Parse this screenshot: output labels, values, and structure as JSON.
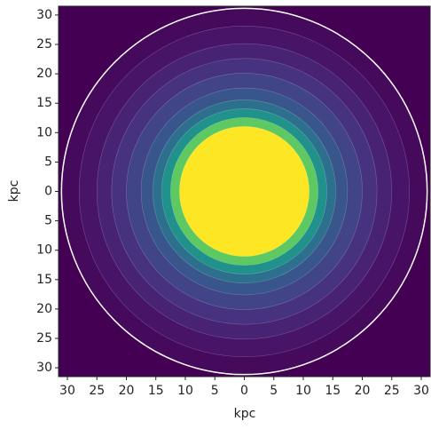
{
  "chart_data": {
    "type": "contourf",
    "xlabel": "kpc",
    "ylabel": "kpc",
    "xlim": [
      -31.5,
      31.5
    ],
    "ylim": [
      -31.5,
      31.5
    ],
    "xticks": [
      {
        "value": -30,
        "label": "30"
      },
      {
        "value": -25,
        "label": "25"
      },
      {
        "value": -20,
        "label": "20"
      },
      {
        "value": -15,
        "label": "15"
      },
      {
        "value": -10,
        "label": "10"
      },
      {
        "value": -5,
        "label": "5"
      },
      0,
      5,
      10,
      15,
      20,
      25,
      30
    ],
    "yticks": [
      {
        "value": -30,
        "label": "30"
      },
      {
        "value": -25,
        "label": "25"
      },
      {
        "value": -20,
        "label": "20"
      },
      {
        "value": -15,
        "label": "15"
      },
      {
        "value": -10,
        "label": "10"
      },
      {
        "value": -5,
        "label": "5"
      },
      0,
      5,
      10,
      15,
      20,
      25,
      30
    ],
    "background": "#440154",
    "outline_color": "#ffffff",
    "bands": [
      {
        "radius": 31,
        "color": "#460a5d"
      },
      {
        "radius": 28,
        "color": "#481467"
      },
      {
        "radius": 25,
        "color": "#482374"
      },
      {
        "radius": 22.5,
        "color": "#46327e"
      },
      {
        "radius": 20,
        "color": "#414487"
      },
      {
        "radius": 17.5,
        "color": "#39568c"
      },
      {
        "radius": 15.5,
        "color": "#2d708e"
      },
      {
        "radius": 14,
        "color": "#21918c"
      },
      {
        "radius": 12.5,
        "color": "#5ec962"
      },
      {
        "radius": 11,
        "color": "#fde725"
      }
    ]
  }
}
